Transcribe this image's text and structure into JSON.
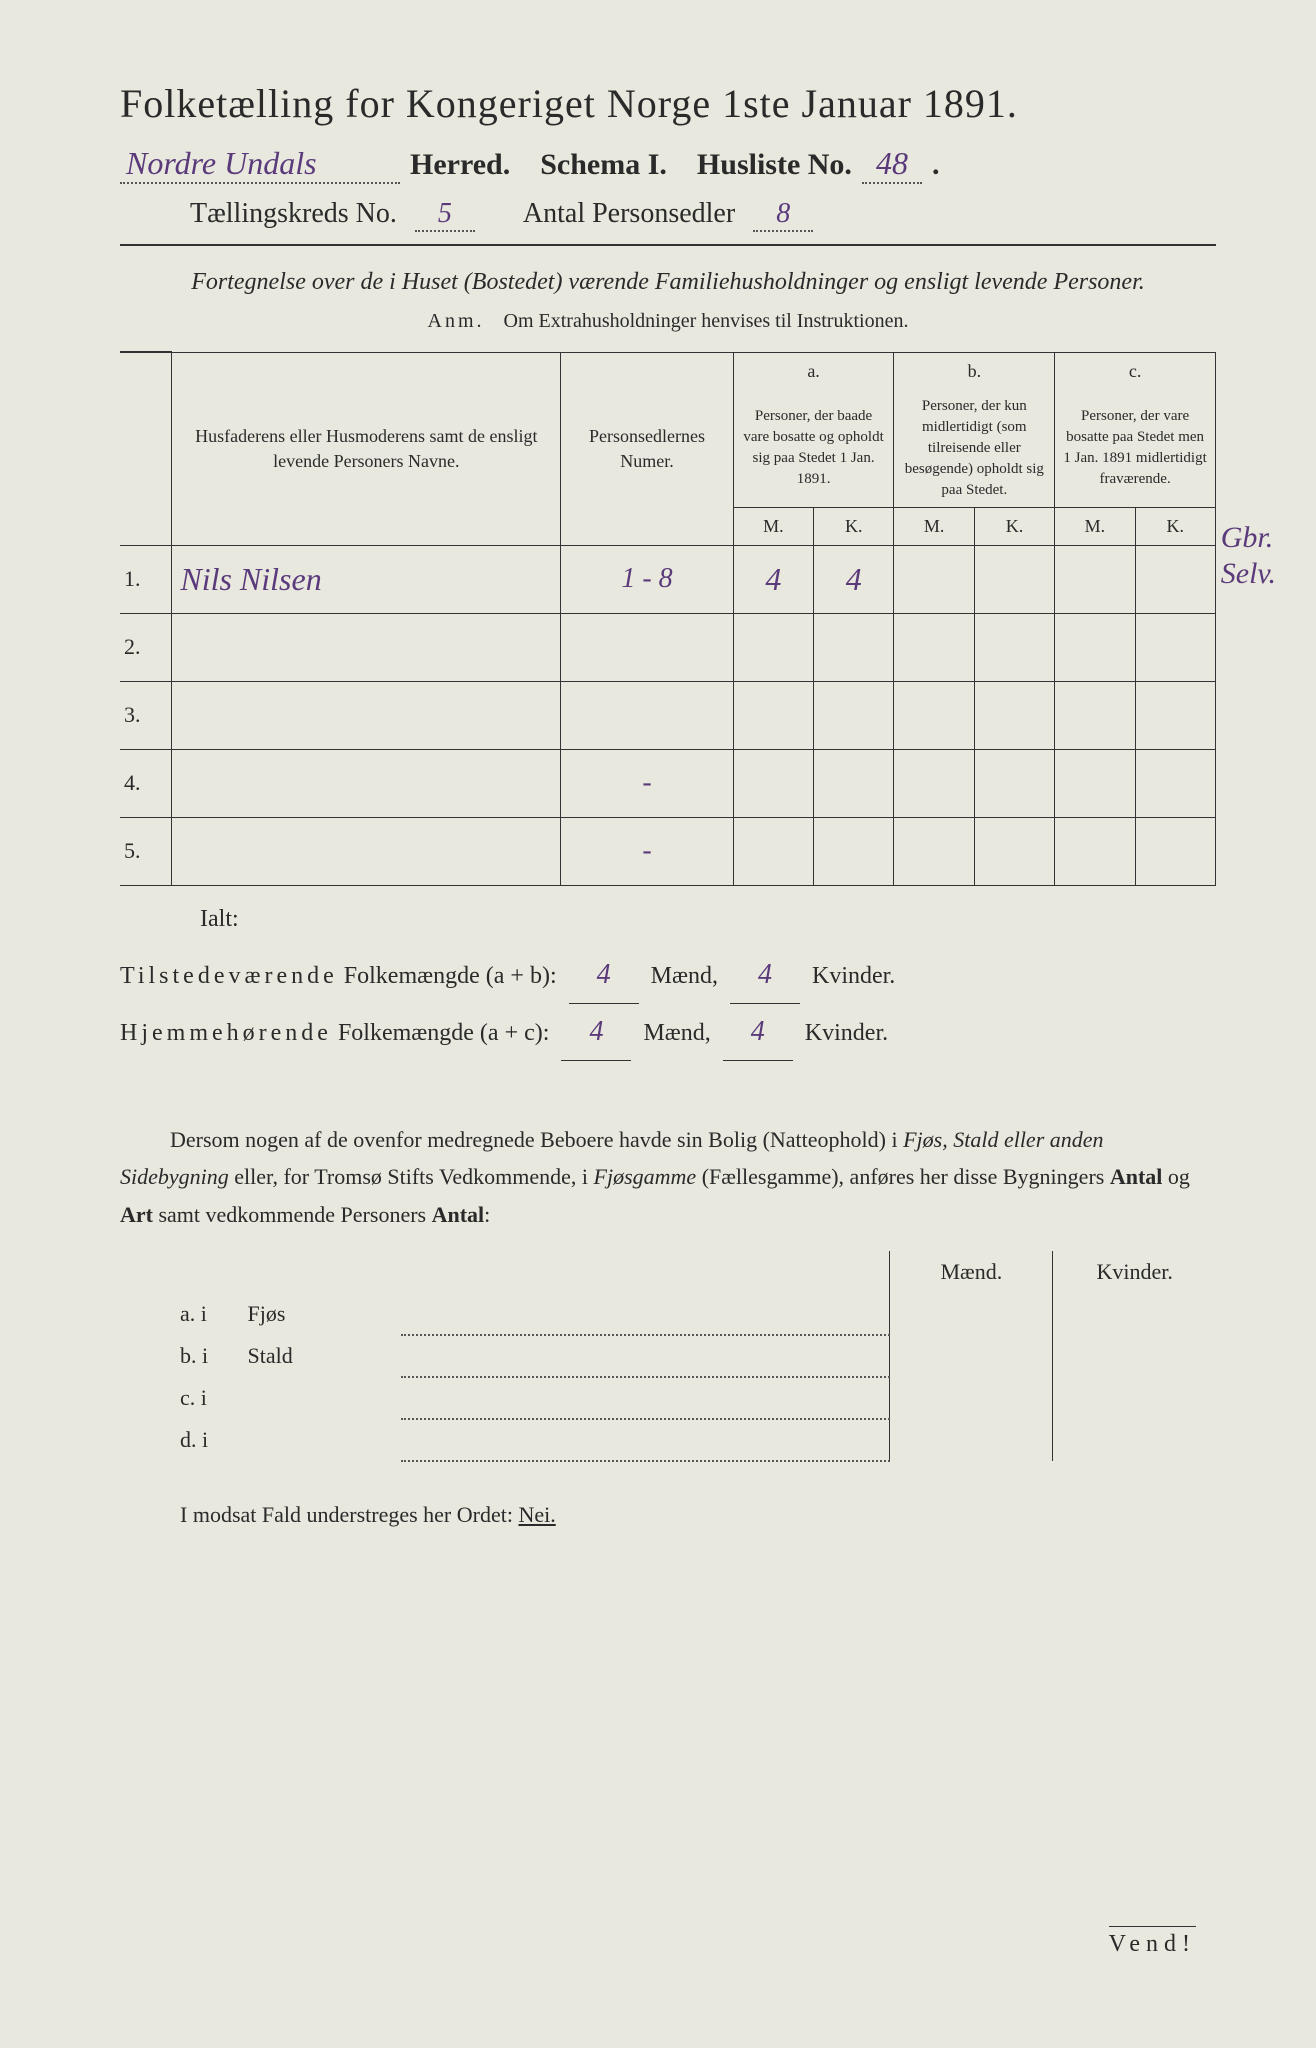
{
  "header": {
    "title": "Folketælling for Kongeriget Norge 1ste Januar 1891.",
    "herred_hand": "Nordre Undals",
    "herred_label": "Herred.",
    "schema_label": "Schema I.",
    "husliste_label": "Husliste No.",
    "husliste_no": "48",
    "taellingskreds_label": "Tællingskreds No.",
    "taellingskreds_no": "5",
    "antal_label": "Antal Personsedler",
    "antal_no": "8"
  },
  "subtitle": "Fortegnelse over de i Huset (Bostedet) værende Familiehusholdninger og ensligt levende Personer.",
  "anm": {
    "label": "Anm.",
    "text": "Om Extrahusholdninger henvises til Instruktionen."
  },
  "table": {
    "col_name_header": "Husfaderens eller Husmoderens samt de ensligt levende Personers Navne.",
    "col_pers_header": "Personsedlernes Numer.",
    "col_a_label": "a.",
    "col_a_header": "Personer, der baade vare bosatte og opholdt sig paa Stedet 1 Jan. 1891.",
    "col_b_label": "b.",
    "col_b_header": "Personer, der kun midlertidigt (som tilreisende eller besøgende) opholdt sig paa Stedet.",
    "col_c_label": "c.",
    "col_c_header": "Personer, der vare bosatte paa Stedet men 1 Jan. 1891 midlertidigt fraværende.",
    "mk_m": "M.",
    "mk_k": "K.",
    "rows": [
      {
        "num": "1.",
        "name": "Nils Nilsen",
        "pers": "1 - 8",
        "a_m": "4",
        "a_k": "4",
        "b_m": "",
        "b_k": "",
        "c_m": "",
        "c_k": ""
      },
      {
        "num": "2.",
        "name": "",
        "pers": "",
        "a_m": "",
        "a_k": "",
        "b_m": "",
        "b_k": "",
        "c_m": "",
        "c_k": ""
      },
      {
        "num": "3.",
        "name": "",
        "pers": "",
        "a_m": "",
        "a_k": "",
        "b_m": "",
        "b_k": "",
        "c_m": "",
        "c_k": ""
      },
      {
        "num": "4.",
        "name": "",
        "pers": "-",
        "a_m": "",
        "a_k": "",
        "b_m": "",
        "b_k": "",
        "c_m": "",
        "c_k": ""
      },
      {
        "num": "5.",
        "name": "",
        "pers": "-",
        "a_m": "",
        "a_k": "",
        "b_m": "",
        "b_k": "",
        "c_m": "",
        "c_k": ""
      }
    ],
    "margin_note_1": "Gbr.",
    "margin_note_2": "Selv."
  },
  "ialt_label": "Ialt:",
  "totals": {
    "line1_label": "Tilstedeværende Folkemængde (a + b):",
    "line2_label": "Hjemmehørende Folkemængde (a + c):",
    "maend_label": "Mænd,",
    "kvinder_label": "Kvinder.",
    "line1_m": "4",
    "line1_k": "4",
    "line2_m": "4",
    "line2_k": "4"
  },
  "paragraph": {
    "text_pre": "Dersom nogen af de ovenfor medregnede Beboere havde sin Bolig (Natteophold) i ",
    "it1": "Fjøs, Stald eller anden Sidebygning",
    "text_mid1": " eller, for Tromsø Stifts Vedkommende, i ",
    "it2": "Fjøsgamme",
    "text_mid2": " (Fællesgamme), anføres her disse Bygningers ",
    "bold1": "Antal",
    "text_mid3": " og ",
    "bold2": "Art",
    "text_mid4": " samt vedkommende Personers ",
    "bold3": "Antal",
    "text_post": ":"
  },
  "subtable": {
    "maend": "Mænd.",
    "kvinder": "Kvinder.",
    "rows": [
      {
        "label": "a.  i",
        "name": "Fjøs"
      },
      {
        "label": "b.  i",
        "name": "Stald"
      },
      {
        "label": "c.  i",
        "name": ""
      },
      {
        "label": "d.  i",
        "name": ""
      }
    ]
  },
  "nei_line": {
    "pre": "I modsat Fald understreges her Ordet: ",
    "nei": "Nei."
  },
  "vend": "Vend!",
  "colors": {
    "paper": "#e8e8de",
    "ink": "#2a2a2a",
    "hand": "#5a3a7a"
  }
}
